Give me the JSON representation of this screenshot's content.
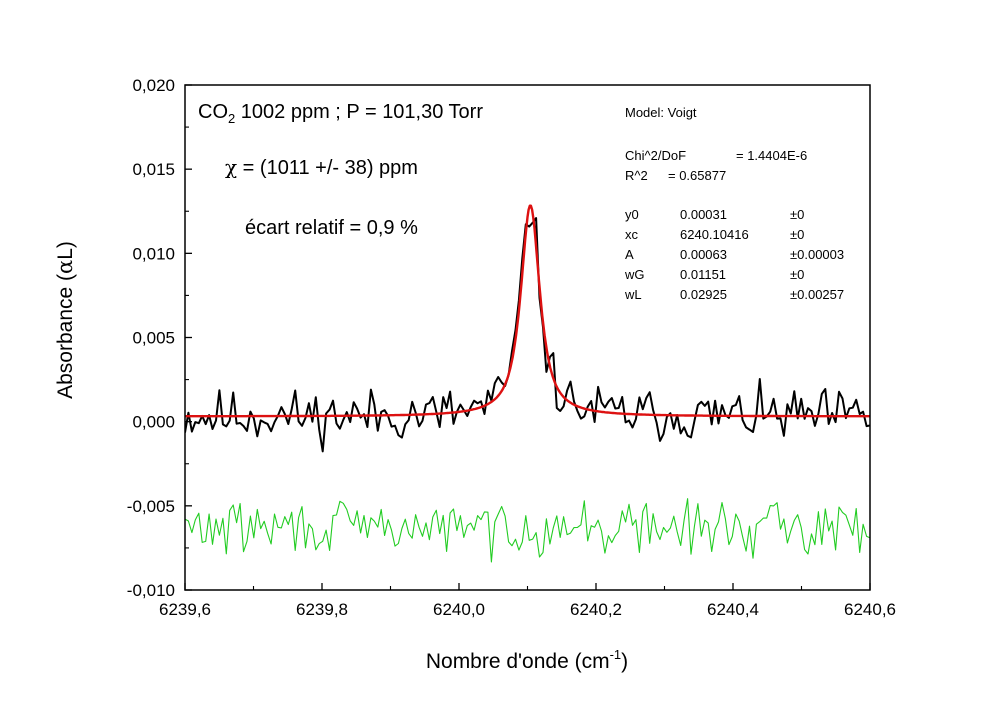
{
  "chart_data": {
    "type": "line",
    "xlabel": "Nombre d'onde (cm",
    "xlabel_sup": "-1",
    "xlabel_close": ")",
    "ylabel": "Absorbance (",
    "ylabel_alpha": "α",
    "ylabel_tail": "L)",
    "xlim": [
      6239.6,
      6240.6
    ],
    "ylim": [
      -0.01,
      0.02
    ],
    "x_ticks": [
      6239.6,
      6239.8,
      6240.0,
      6240.2,
      6240.4,
      6240.6
    ],
    "x_tick_labels": [
      "6239,6",
      "6239,8",
      "6240,0",
      "6240,2",
      "6240,4",
      "6240,6"
    ],
    "y_ticks": [
      -0.01,
      -0.005,
      0.0,
      0.005,
      0.01,
      0.015,
      0.02
    ],
    "y_tick_labels": [
      "-0,010",
      "-0,005",
      "0,000",
      "0,005",
      "0,010",
      "0,015",
      "0,020"
    ],
    "grid": false,
    "series": [
      {
        "name": "",
        "color": "#000000",
        "role": "data",
        "n_points": 200,
        "seed": 11,
        "noise_amp": 0.0011
      },
      {
        "name": "",
        "color": "#dd1111",
        "role": "fit"
      },
      {
        "name": "",
        "color": "#22cc22",
        "role": "residual",
        "n_points": 200,
        "seed": 29,
        "offset": -0.0063,
        "noise_amp": 0.0011
      }
    ],
    "fit_model": {
      "model": "Voigt",
      "y0": 0.00031,
      "xc": 6240.10416,
      "A": 0.00063,
      "wG": 0.01151,
      "wL": 0.02925
    },
    "annotations": {
      "title_line": {
        "prefix": "CO",
        "sub": "2",
        "rest": " 1002 ppm ; P = 101,30 Torr"
      },
      "chi_line": {
        "symbol": "χ",
        "text": " = (1011 +/- 38) ppm"
      },
      "ecart_line": "écart relatif = 0,9 %",
      "model_box": {
        "model_label": "Model: Voigt",
        "chi2_label": "Chi^2/DoF",
        "chi2_value": "= 1.4404E-6",
        "r2_label": "R^2",
        "r2_value": "=  0.65877",
        "params": [
          {
            "name": "y0",
            "value": "0.00031",
            "err": "±0"
          },
          {
            "name": "xc",
            "value": "6240.10416",
            "err": "±0"
          },
          {
            "name": "A",
            "value": "0.00063",
            "err": "±0.00003"
          },
          {
            "name": "wG",
            "value": "0.01151",
            "err": "±0"
          },
          {
            "name": "wL",
            "value": "0.02925",
            "err": "±0.00257"
          }
        ]
      }
    }
  }
}
